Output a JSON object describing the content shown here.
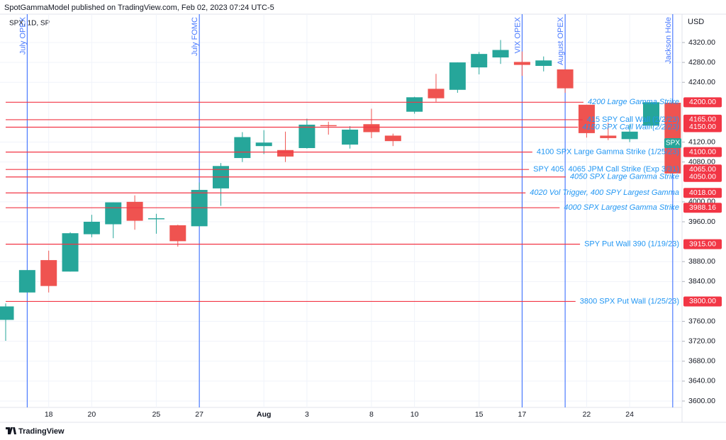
{
  "header": "SpotGammaModel published on TradingView.com, Feb 02, 2023 07:24 UTC-5",
  "footer": "TradingView",
  "chart_data": {
    "type": "candlestick",
    "symbol": "SPX, 1D, SP",
    "currency": "USD",
    "symbol_tag": "SPX",
    "up_color": "#26a69a",
    "down_color": "#ef5350",
    "grid": true,
    "categories": [
      null,
      null,
      "18",
      null,
      "20",
      null,
      null,
      "25",
      null,
      "27",
      null,
      null,
      "Aug",
      null,
      "3",
      null,
      null,
      "8",
      null,
      "10",
      null,
      null,
      "15",
      null,
      "17",
      null,
      null,
      "22",
      null,
      "24",
      null,
      null
    ],
    "open": [
      3763,
      3818,
      3883,
      3860,
      3935,
      3955,
      4000,
      3965,
      3953,
      3951,
      4027,
      4088,
      4112,
      4104,
      4108,
      4154,
      4115,
      4156,
      4133,
      4181,
      4227,
      4225,
      4270,
      4290,
      4281,
      4273,
      4266,
      4195,
      4133,
      4126,
      4153,
      4199
    ],
    "high": [
      3796,
      3863,
      3902,
      3939,
      3974,
      3999,
      4013,
      3976,
      3954,
      4039,
      4078,
      4140,
      4144,
      4141,
      4167,
      4161,
      4152,
      4187,
      4137,
      4211,
      4257,
      4280,
      4301,
      4325,
      4302,
      4292,
      4266,
      4195,
      4159,
      4156,
      4200,
      4203
    ],
    "low": [
      3721,
      3818,
      3818,
      3860,
      3929,
      3927,
      3944,
      3936,
      3910,
      3951,
      3992,
      4080,
      4096,
      4080,
      4107,
      4135,
      4107,
      4128,
      4112,
      4177,
      4201,
      4219,
      4256,
      4277,
      4253,
      4262,
      4219,
      4129,
      4124,
      4120,
      4147,
      4057
    ],
    "close": [
      3790,
      3863,
      3831,
      3937,
      3960,
      3999,
      3962,
      3967,
      3921,
      4024,
      4072,
      4130,
      4119,
      4091,
      4155,
      4152,
      4145,
      4140,
      4122,
      4210,
      4208,
      4280,
      4297,
      4305,
      4275,
      4284,
      4228,
      4138,
      4128,
      4141,
      4200,
      4057
    ],
    "events": [
      null,
      "July OPEX",
      null,
      null,
      null,
      null,
      null,
      null,
      null,
      "July FOMC",
      null,
      null,
      null,
      null,
      null,
      null,
      null,
      null,
      null,
      null,
      null,
      null,
      null,
      null,
      "VIX OPEX",
      null,
      "August OPEX",
      null,
      null,
      null,
      null,
      "Jackson Hole"
    ],
    "event_color": "#2962ff",
    "levels": {
      "color": "#f23645",
      "values": [
        4200,
        4165,
        4150,
        4100,
        4065,
        4050,
        4018,
        3988.16,
        3915,
        3800
      ],
      "value_labels": [
        "4200.00",
        "4165.00",
        "4150.00",
        "4100.00",
        "4065.00",
        "4050.00",
        "4018.00",
        "3988.16",
        "3915.00",
        "3800.00"
      ],
      "labels": [
        "4200 Large Gamma Strike",
        "415 SPY Call Wall (2/2/23)",
        "4150 SPX Call Wall (2/2/23)",
        "4100 SPX Large Gamma Strike (1/25/23)",
        "SPY 405, 4065 JPM Call Strike (Exp 3/31)",
        "4050 SPX Large Gamma Strike",
        "4020 Vol Trigger, 400 SPY Largest Gamma",
        "4000 SPX Largest Gamma Strike",
        "SPY Put Wall 390 (1/19/23)",
        "3800 SPX Put Wall (1/25/23)"
      ],
      "italic": [
        true,
        false,
        true,
        false,
        false,
        true,
        true,
        true,
        false,
        false
      ]
    },
    "ylim": [
      3587.2,
      4376.9
    ],
    "yticks": [
      {
        "value": 3600,
        "label": "3600.00"
      },
      {
        "value": 3640,
        "label": "3640.00"
      },
      {
        "value": 3680,
        "label": "3680.00"
      },
      {
        "value": 3720,
        "label": "3720.00"
      },
      {
        "value": 3760,
        "label": "3760.00"
      },
      {
        "value": 3840,
        "label": "3840.00"
      },
      {
        "value": 3880,
        "label": "3880.00"
      },
      {
        "value": 3960,
        "label": "3960.00"
      },
      {
        "value": 4000,
        "label": "4000.00"
      },
      {
        "value": 4080,
        "label": "4080.00"
      },
      {
        "value": 4120,
        "label": "4120.00"
      },
      {
        "value": 4240,
        "label": "4240.00"
      },
      {
        "value": 4280,
        "label": "4280.00"
      },
      {
        "value": 4320,
        "label": "4320.00"
      }
    ]
  }
}
